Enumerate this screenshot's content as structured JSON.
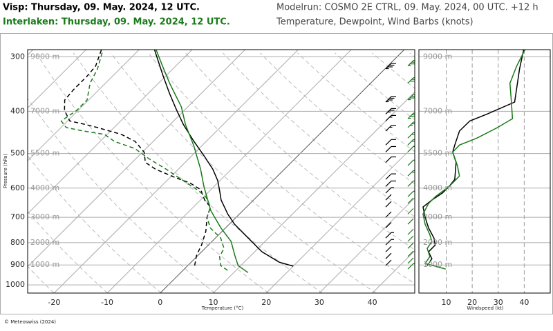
{
  "header": {
    "visp": "Visp: Thursday, 09. May. 2024, 12 UTC.",
    "interlaken": "Interlaken: Thursday, 09. May. 2024, 12 UTC.",
    "modelrun": "Modelrun: COSMO 2E CTRL, 09. May. 2024, 00 UTC. +12 h",
    "description": "Temperature, Dewpoint, Wind Barbs (knots)",
    "visp_color": "#000000",
    "interlaken_color": "#1a7a1a"
  },
  "footer": "© Meteoswiss (2024)",
  "chart_data": [
    {
      "type": "skewt",
      "y_label": "Pressure (hPa)",
      "x_label": "Temperature (°C)",
      "log_y": true,
      "ylim": [
        1044,
        289
      ],
      "yticks": [
        300,
        400,
        500,
        600,
        700,
        800,
        900,
        1000
      ],
      "xlim": [
        -25,
        48
      ],
      "xticks": [
        -20,
        -10,
        0,
        10,
        20,
        30,
        40
      ],
      "height_ticks": [
        {
          "value": 300,
          "label": "9000 m"
        },
        {
          "value": 400,
          "label": "7000 m"
        },
        {
          "value": 500,
          "label": "5500 m"
        },
        {
          "value": 600,
          "label": "4000 m"
        },
        {
          "value": 700,
          "label": "3000 m"
        },
        {
          "value": 800,
          "label": "2000 m"
        },
        {
          "value": 900,
          "label": "1000 m"
        }
      ],
      "series": [
        {
          "color": "#000000",
          "dashed": false,
          "pressure": [
            906,
            887,
            840,
            781,
            726,
            688,
            639,
            612,
            577,
            543,
            505,
            469,
            429,
            396,
            364,
            332,
            289
          ],
          "values": [
            20.0,
            16.6,
            11.4,
            6.2,
            1.0,
            -2.2,
            -6.1,
            -7.9,
            -10.4,
            -13.5,
            -17.8,
            -22.3,
            -27.5,
            -31.7,
            -36.0,
            -40.5,
            -47.1
          ]
        },
        {
          "color": "#000000",
          "dashed": true,
          "pressure": [
            903,
            855,
            810,
            753,
            700,
            663,
            639,
            605,
            584,
            569,
            543,
            524,
            496,
            469,
            452,
            436,
            428,
            421,
            398,
            377,
            357,
            332,
            315,
            289
          ],
          "values": [
            1.3,
            -0.3,
            -1.3,
            -3.1,
            -5.5,
            -6.8,
            -9.2,
            -11.9,
            -15.2,
            -18.7,
            -24.3,
            -27.5,
            -29.7,
            -33.4,
            -37.3,
            -43.1,
            -46.4,
            -49.6,
            -52.6,
            -54.5,
            -54.8,
            -54.8,
            -55.1,
            -57.1
          ]
        },
        {
          "color": "#1a7a1a",
          "dashed": false,
          "pressure": [
            937,
            903,
            855,
            795,
            740,
            675,
            595,
            543,
            478,
            429,
            391,
            345,
            315,
            289
          ],
          "values": [
            12.7,
            9.5,
            6.9,
            3.6,
            -0.9,
            -6.1,
            -11.9,
            -15.8,
            -21.7,
            -27.1,
            -31.2,
            -37.9,
            -42.5,
            -46.8
          ]
        },
        {
          "color": "#1a7a1a",
          "dashed": true,
          "pressure": [
            926,
            903,
            861,
            825,
            781,
            740,
            700,
            663,
            628,
            605,
            584,
            563,
            543,
            514,
            487,
            469,
            452,
            444,
            436,
            421,
            398,
            377,
            345,
            320,
            289
          ],
          "values": [
            8.4,
            6.2,
            4.3,
            3.6,
            1.0,
            -2.9,
            -5.5,
            -6.8,
            -9.6,
            -12.6,
            -15.8,
            -19.1,
            -22.3,
            -27.5,
            -32.1,
            -37.3,
            -40.5,
            -45.1,
            -49.0,
            -51.2,
            -50.3,
            -50.3,
            -52.9,
            -54.2,
            -56.8
          ]
        }
      ]
    },
    {
      "type": "wind-profile",
      "x_label": "Windspeed (kt)",
      "log_y": true,
      "ylim": [
        1044,
        289
      ],
      "xlim": [
        -0.5,
        50
      ],
      "xticks": [
        10,
        20,
        30,
        40
      ],
      "yticks": [
        {
          "value": 300,
          "label": "9000 m"
        },
        {
          "value": 400,
          "label": "7000 m"
        },
        {
          "value": 500,
          "label": "5500 m"
        },
        {
          "value": 600,
          "label": "4000 m"
        },
        {
          "value": 700,
          "label": "3000 m"
        },
        {
          "value": 800,
          "label": "2000 m"
        },
        {
          "value": 900,
          "label": "1000 m"
        }
      ],
      "series": [
        {
          "color": "#000000",
          "pressure": [
            289,
            320,
            381,
            406,
            421,
            444,
            478,
            496,
            524,
            573,
            595,
            616,
            639,
            663,
            700,
            740,
            781,
            810,
            840,
            871,
            903
          ],
          "values": [
            39.8,
            38.2,
            36.3,
            25.7,
            19.1,
            15.1,
            13.3,
            12.5,
            13.8,
            13.3,
            11.1,
            8.5,
            4.5,
            1.1,
            1.9,
            3.2,
            5.3,
            5.8,
            3.2,
            4.5,
            2.7
          ]
        },
        {
          "color": "#1a7a1a",
          "pressure": [
            289,
            315,
            345,
            377,
            416,
            436,
            461,
            478,
            496,
            533,
            563,
            595,
            628,
            651,
            688,
            726,
            767,
            795,
            825,
            861,
            893,
            920
          ],
          "values": [
            40.3,
            37.1,
            34.5,
            35.0,
            35.5,
            29.7,
            21.8,
            15.1,
            12.5,
            14.3,
            15.1,
            11.1,
            5.8,
            3.2,
            1.1,
            1.9,
            3.7,
            4.5,
            2.7,
            3.7,
            1.9,
            9.8
          ]
        }
      ]
    }
  ]
}
